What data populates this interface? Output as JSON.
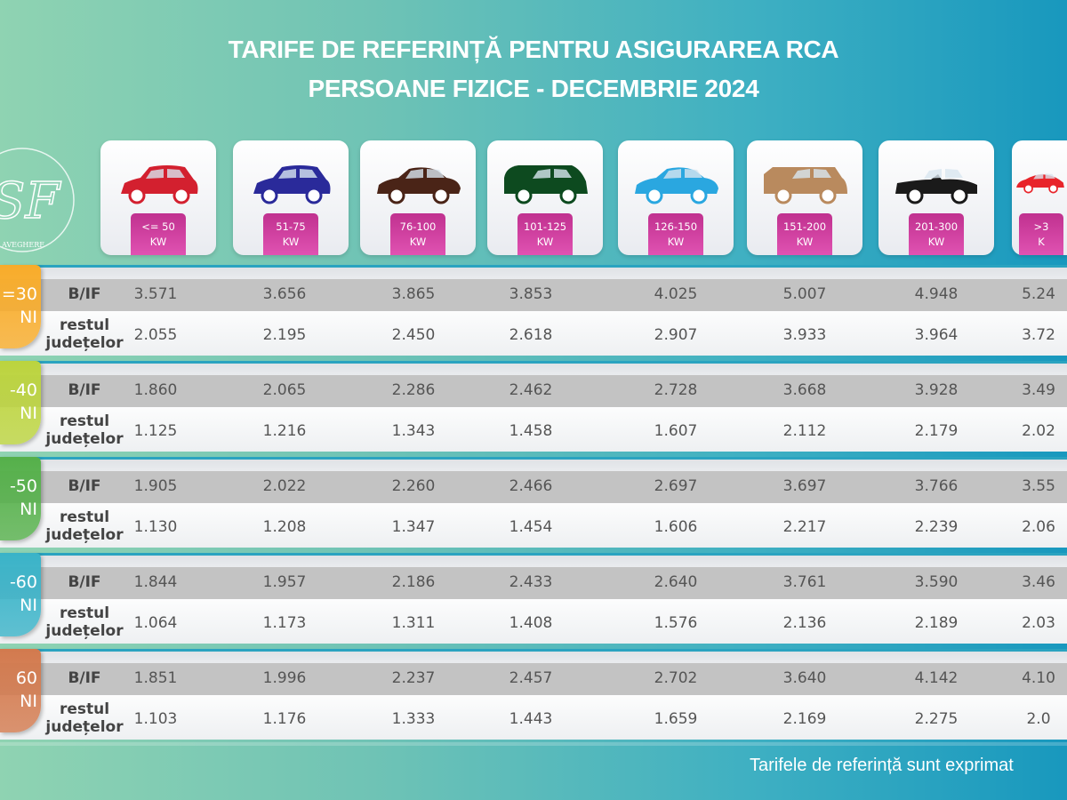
{
  "title": {
    "line1": "TARIFE DE REFERINȚĂ PENTRU ASIGURAREA RCA",
    "line2": "PERSOANE FIZICE - DECEMBRIE 2024"
  },
  "logo": {
    "text": "ASF - Autoritatea de Supraveghere Financiară",
    "visible_text": "SUPRAVEGHERE FINANCIARĂ"
  },
  "columns": [
    {
      "range": "<= 50",
      "unit": "KW",
      "car_color": "#d3202f",
      "car_icon": "hatchback-icon"
    },
    {
      "range": "51-75",
      "unit": "KW",
      "car_color": "#2a2a9a",
      "car_icon": "hatchback-icon"
    },
    {
      "range": "76-100",
      "unit": "KW",
      "car_color": "#4a2417",
      "car_icon": "sedan-icon"
    },
    {
      "range": "101-125",
      "unit": "KW",
      "car_color": "#0d4a1f",
      "car_icon": "minivan-icon"
    },
    {
      "range": "126-150",
      "unit": "KW",
      "car_color": "#2aa7e0",
      "car_icon": "sedan-icon"
    },
    {
      "range": "151-200",
      "unit": "KW",
      "car_color": "#b98a5e",
      "car_icon": "suv-icon"
    },
    {
      "range": "201-300",
      "unit": "KW",
      "car_color": "#1a1a1a",
      "car_icon": "convertible-icon"
    },
    {
      "range": ">3",
      "unit": "K",
      "car_color": "#e8242a",
      "car_icon": "sports-car-icon"
    }
  ],
  "row_labels": {
    "bif": "B/IF",
    "rest_1": "restul",
    "rest_2": "județelor"
  },
  "groups": [
    {
      "age_1": "=30",
      "age_2": "NI",
      "color": "#f8ac2a",
      "bif": [
        "3.571",
        "3.656",
        "3.865",
        "3.853",
        "4.025",
        "5.007",
        "4.948",
        "5.24"
      ],
      "rest": [
        "2.055",
        "2.195",
        "2.450",
        "2.618",
        "2.907",
        "3.933",
        "3.964",
        "3.72"
      ]
    },
    {
      "age_1": "-40",
      "age_2": "NI",
      "color": "#bcd43e",
      "bif": [
        "1.860",
        "2.065",
        "2.286",
        "2.462",
        "2.728",
        "3.668",
        "3.928",
        "3.49"
      ],
      "rest": [
        "1.125",
        "1.216",
        "1.343",
        "1.458",
        "1.607",
        "2.112",
        "2.179",
        "2.02"
      ]
    },
    {
      "age_1": "-50",
      "age_2": "NI",
      "color": "#55b04a",
      "bif": [
        "1.905",
        "2.022",
        "2.260",
        "2.466",
        "2.697",
        "3.697",
        "3.766",
        "3.55"
      ],
      "rest": [
        "1.130",
        "1.208",
        "1.347",
        "1.454",
        "1.606",
        "2.217",
        "2.239",
        "2.06"
      ]
    },
    {
      "age_1": "-60",
      "age_2": "NI",
      "color": "#3ab3c8",
      "bif": [
        "1.844",
        "1.957",
        "2.186",
        "2.433",
        "2.640",
        "3.761",
        "3.590",
        "3.46"
      ],
      "rest": [
        "1.064",
        "1.173",
        "1.311",
        "1.408",
        "1.576",
        "2.136",
        "2.189",
        "2.03"
      ]
    },
    {
      "age_1": "60",
      "age_2": "NI",
      "color": "#d37a4e",
      "bif": [
        "1.851",
        "1.996",
        "2.237",
        "2.457",
        "2.702",
        "3.640",
        "4.142",
        "4.10"
      ],
      "rest": [
        "1.103",
        "1.176",
        "1.333",
        "1.443",
        "1.659",
        "2.169",
        "2.275",
        "2.0"
      ]
    }
  ],
  "footer": "Tarifele de referință sunt exprimat"
}
